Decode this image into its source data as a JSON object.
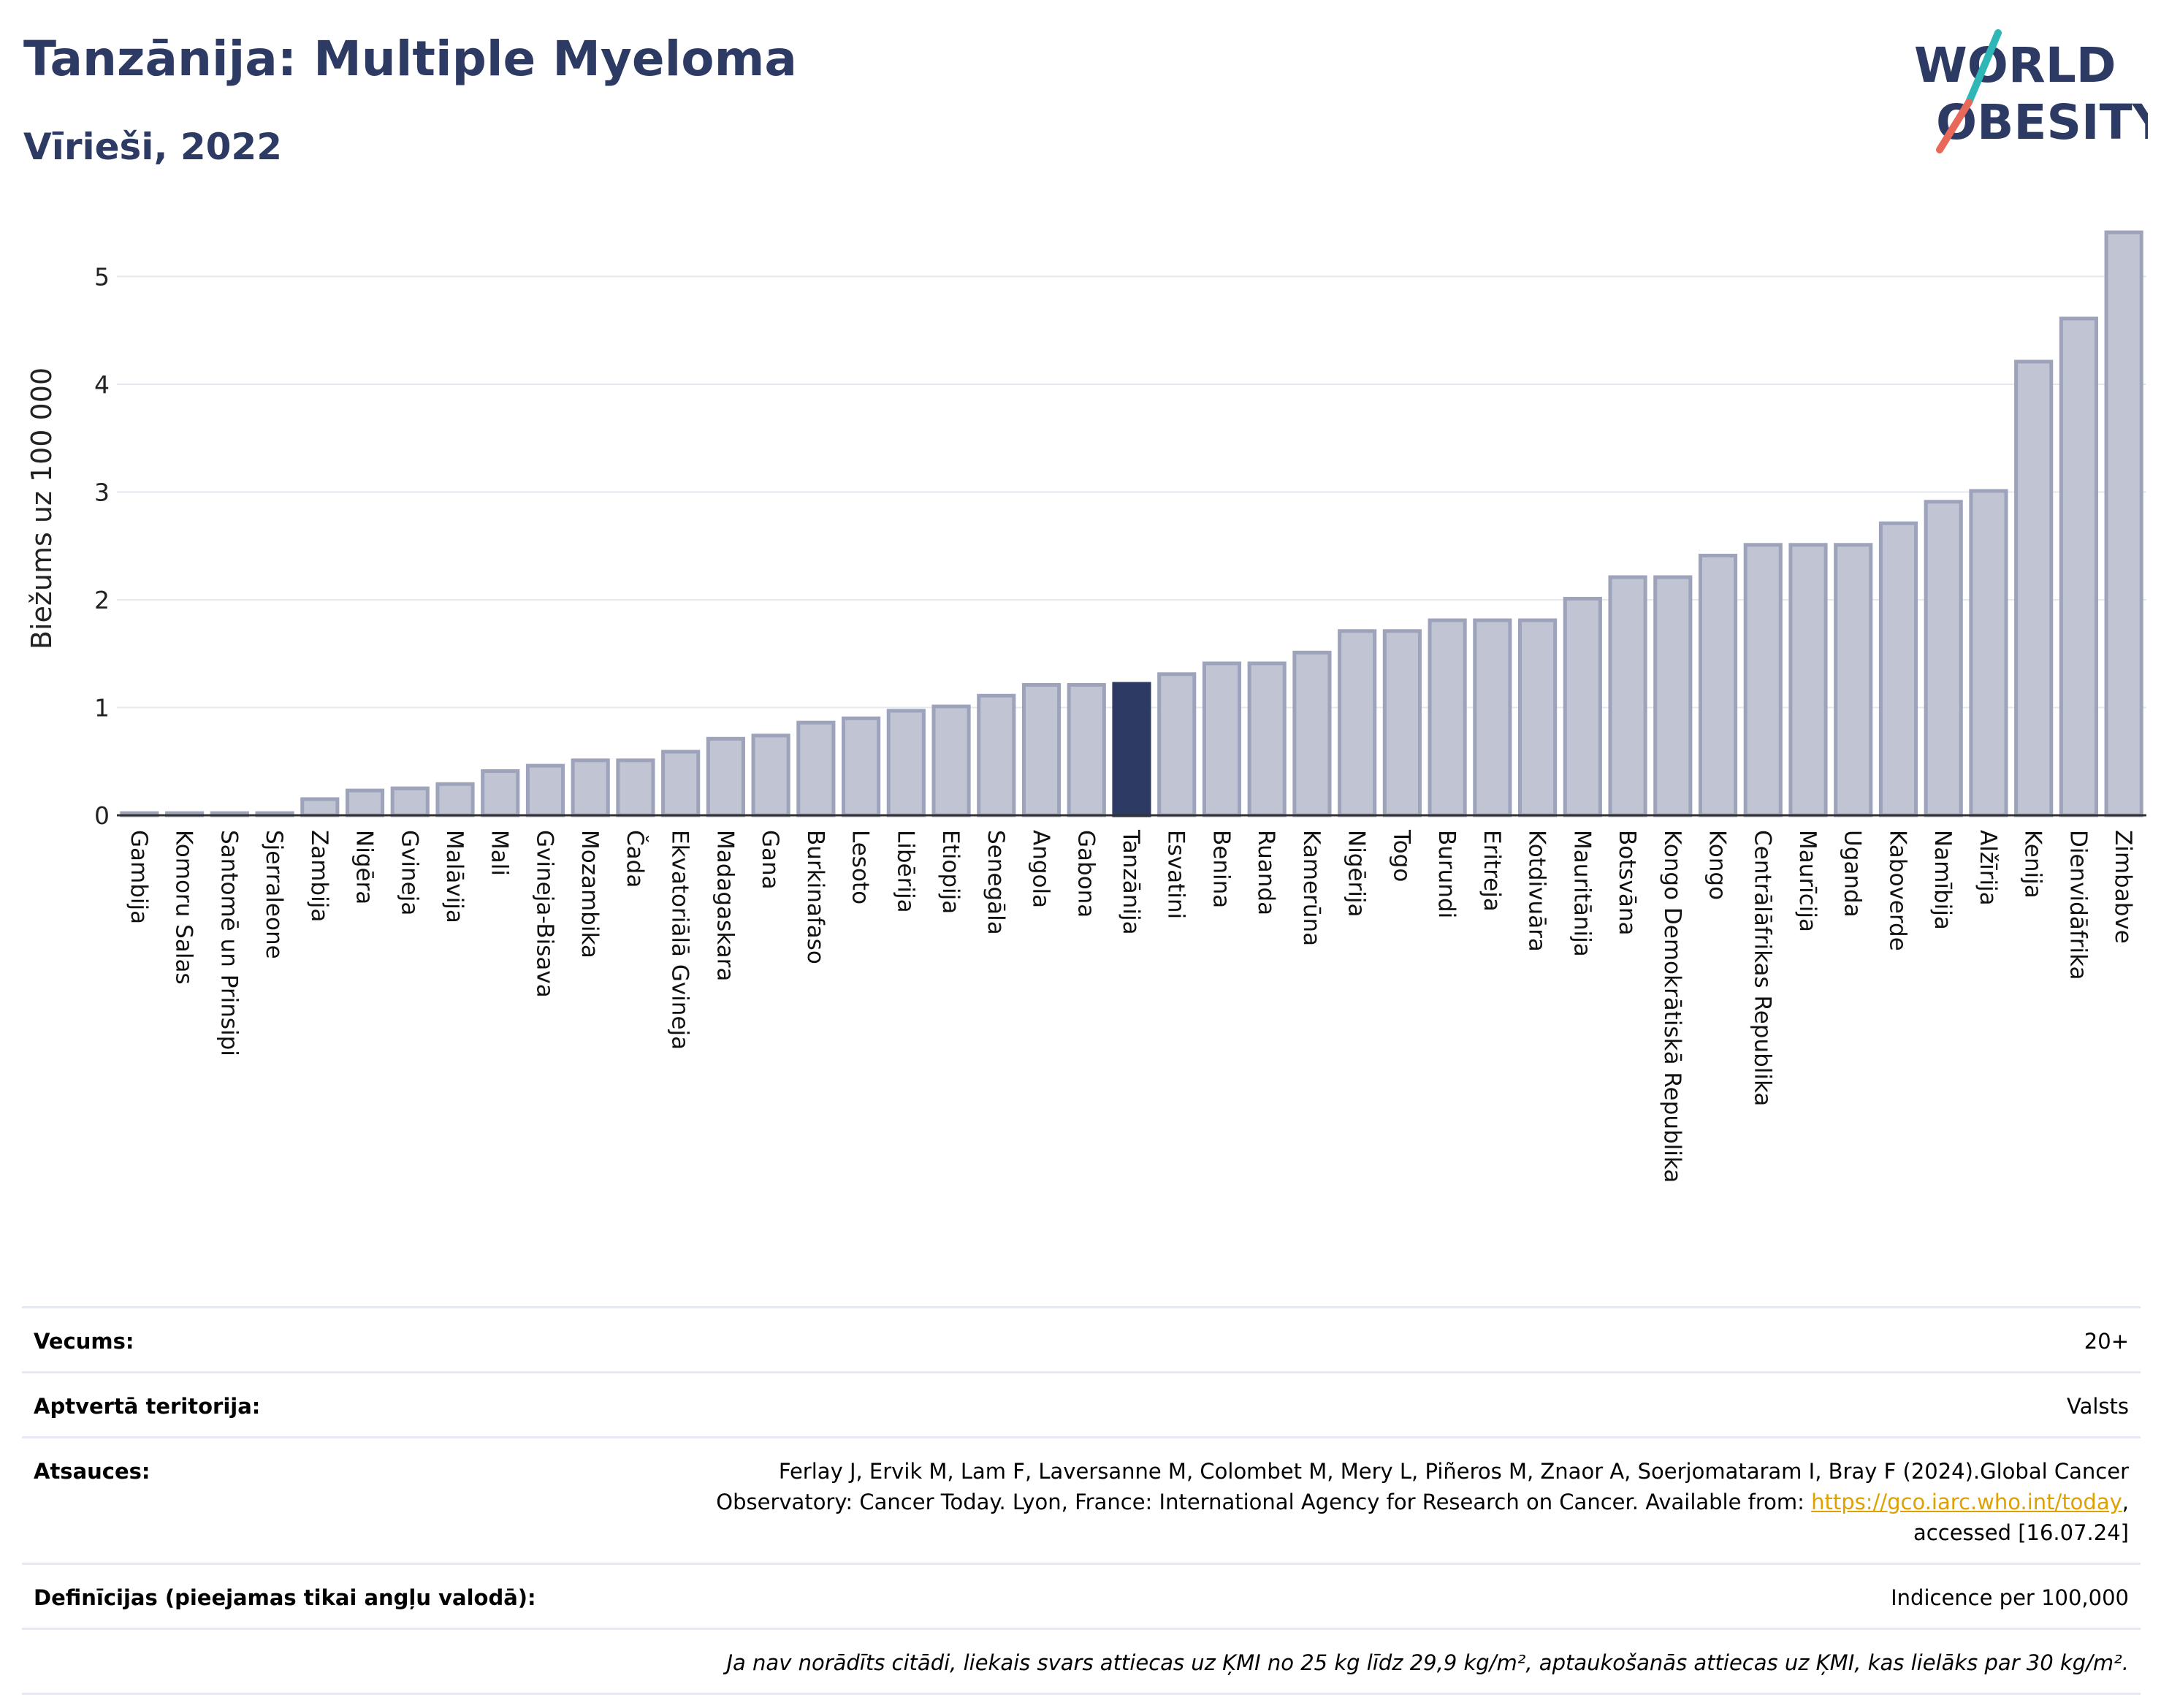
{
  "title": "Tanzānija: Multiple Myeloma",
  "subtitle": "Vīrieši, 2022",
  "logo": {
    "line1": "WORLD",
    "line2": "OBESITY",
    "colors": [
      "#2d3a63",
      "#e8685a",
      "#2fb6b6"
    ]
  },
  "chart_data": {
    "type": "bar",
    "ylabel": "Biežums uz 100 000",
    "ylim": [
      0,
      5.5
    ],
    "yticks": [
      0,
      1,
      2,
      3,
      4,
      5
    ],
    "highlight": "Tanzānija",
    "colors": {
      "bar": "#c0c4d3",
      "bar_edge": "#9da3ba",
      "highlight": "#2d3a63"
    },
    "categories": [
      "Gambija",
      "Komoru Salas",
      "Santomē un Prinsipi",
      "Sjerraleone",
      "Zambija",
      "Nigēra",
      "Gvineja",
      "Malāvija",
      "Mali",
      "Gvineja-Bisava",
      "Mozambika",
      "Čada",
      "Ekvatoriālā Gvineja",
      "Madagaskara",
      "Gana",
      "Burkinafaso",
      "Lesoto",
      "Libērija",
      "Etiopija",
      "Senegāla",
      "Angola",
      "Gabona",
      "Tanzānija",
      "Esvatini",
      "Benina",
      "Ruanda",
      "Kamerūna",
      "Nigērija",
      "Togo",
      "Burundi",
      "Eritreja",
      "Kotdivuāra",
      "Mauritānija",
      "Botsvāna",
      "Kongo Demokrātiskā Republika",
      "Kongo",
      "Centrālāfrikas Republika",
      "Maurīcija",
      "Uganda",
      "Kaboverde",
      "Namībija",
      "Alžīrija",
      "Kenija",
      "Dienvidāfrika",
      "Zimbabve"
    ],
    "values": [
      0.02,
      0.02,
      0.02,
      0.02,
      0.15,
      0.23,
      0.25,
      0.29,
      0.41,
      0.46,
      0.51,
      0.51,
      0.59,
      0.71,
      0.74,
      0.86,
      0.9,
      0.97,
      1.01,
      1.11,
      1.21,
      1.21,
      1.22,
      1.31,
      1.41,
      1.41,
      1.51,
      1.71,
      1.71,
      1.81,
      1.81,
      1.81,
      2.01,
      2.21,
      2.21,
      2.41,
      2.51,
      2.51,
      2.51,
      2.71,
      2.91,
      3.01,
      4.21,
      4.61,
      5.41
    ]
  },
  "info": {
    "age_label": "Vecums:",
    "age_value": "20+",
    "territory_label": "Aptvertā teritorija:",
    "territory_value": "Valsts",
    "refs_label": "Atsauces:",
    "refs_line1": "Ferlay J, Ervik M, Lam F, Laversanne M, Colombet M, Mery L, Piñeros M, Znaor A, Soerjomataram I, Bray F (2024).Global Cancer",
    "refs_line2_pre": "Observatory: Cancer Today. Lyon, France: International Agency for Research on Cancer. Available from: ",
    "refs_link": "https://gco.iarc.who.int/today",
    "refs_line2_post": ",",
    "refs_line3": "accessed [16.07.24]",
    "defs_label": "Definīcijas (pieejamas tikai angļu valodā):",
    "defs_value": "Indicence per 100,000",
    "note": "Ja nav norādīts citādi, liekais svars attiecas uz ĶMI no 25 kg līdz 29,9 kg/m², aptaukošanās attiecas uz ĶMI, kas lielāks par 30 kg/m²."
  }
}
